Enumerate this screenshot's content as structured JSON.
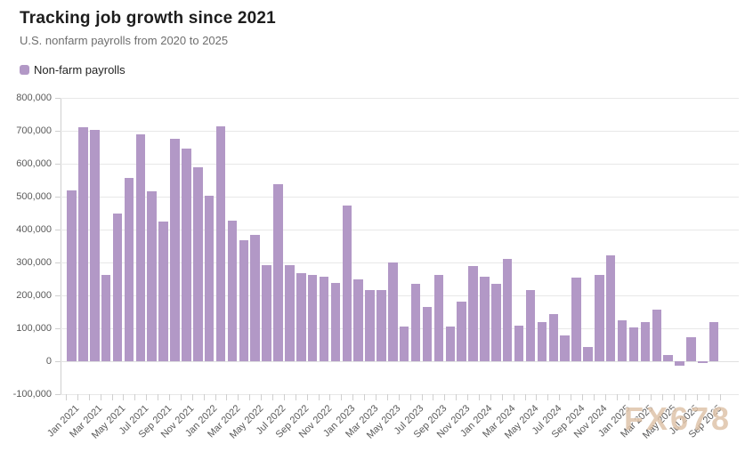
{
  "header": {
    "title": "Tracking job growth since 2021",
    "subtitle": "U.S. nonfarm payrolls from 2020 to 2025"
  },
  "legend": {
    "label": "Non-farm payrolls",
    "swatch_color": "#b298c6"
  },
  "watermark": "FX678",
  "chart_data": {
    "type": "bar",
    "title": "Tracking job growth since 2021",
    "subtitle": "U.S. nonfarm payrolls from 2020 to 2025",
    "series_name": "Non-farm payrolls",
    "bar_color": "#b298c6",
    "grid": true,
    "legend_position": "top-left",
    "xlabel": "",
    "ylabel": "",
    "ylim": [
      -100000,
      800000
    ],
    "y_tick_step": 100000,
    "y_tick_labels": [
      "800,000",
      "700,000",
      "600,000",
      "500,000",
      "400,000",
      "300,000",
      "200,000",
      "100,000",
      "0",
      "-100,000"
    ],
    "x_tick_labels": [
      "Jan 2021",
      "Mar 2021",
      "May 2021",
      "Jul 2021",
      "Sep 2021",
      "Nov 2021",
      "Jan 2022",
      "Mar 2022",
      "May 2022",
      "Jul 2022",
      "Sep 2022",
      "Nov 2022",
      "Jan 2023",
      "Mar 2023",
      "May 2023",
      "Jul 2023",
      "Sep 2023",
      "Nov 2023",
      "Jan 2024",
      "Mar 2024",
      "May 2024",
      "Jul 2024",
      "Sep 2024",
      "Nov 2024",
      "Jan 2025",
      "Mar 2025",
      "May 2025",
      "Jul 2025",
      "Sep 2025"
    ],
    "categories": [
      "Jan 2021",
      "Feb 2021",
      "Mar 2021",
      "Apr 2021",
      "May 2021",
      "Jun 2021",
      "Jul 2021",
      "Aug 2021",
      "Sep 2021",
      "Oct 2021",
      "Nov 2021",
      "Dec 2021",
      "Jan 2022",
      "Feb 2022",
      "Mar 2022",
      "Apr 2022",
      "May 2022",
      "Jun 2022",
      "Jul 2022",
      "Aug 2022",
      "Sep 2022",
      "Oct 2022",
      "Nov 2022",
      "Dec 2022",
      "Jan 2023",
      "Feb 2023",
      "Mar 2023",
      "Apr 2023",
      "May 2023",
      "Jun 2023",
      "Jul 2023",
      "Aug 2023",
      "Sep 2023",
      "Oct 2023",
      "Nov 2023",
      "Dec 2023",
      "Jan 2024",
      "Feb 2024",
      "Mar 2024",
      "Apr 2024",
      "May 2024",
      "Jun 2024",
      "Jul 2024",
      "Aug 2024",
      "Sep 2024",
      "Oct 2024",
      "Nov 2024",
      "Dec 2024",
      "Jan 2025",
      "Feb 2025",
      "Mar 2025",
      "Apr 2025",
      "May 2025",
      "Jun 2025",
      "Jul 2025",
      "Aug 2025",
      "Sep 2025"
    ],
    "values": [
      520000,
      710000,
      704000,
      263000,
      448000,
      557000,
      689000,
      517000,
      424000,
      677000,
      647000,
      588000,
      504000,
      714000,
      428000,
      368000,
      384000,
      293000,
      537000,
      292000,
      269000,
      263000,
      256000,
      239000,
      472000,
      248000,
      217000,
      217000,
      300000,
      105000,
      236000,
      165000,
      262000,
      105000,
      182000,
      290000,
      256000,
      236000,
      310000,
      108000,
      216000,
      118000,
      144000,
      78000,
      255000,
      44000,
      261000,
      323000,
      125000,
      102000,
      120000,
      158000,
      19000,
      -13000,
      72000,
      -4000,
      119000
    ]
  }
}
